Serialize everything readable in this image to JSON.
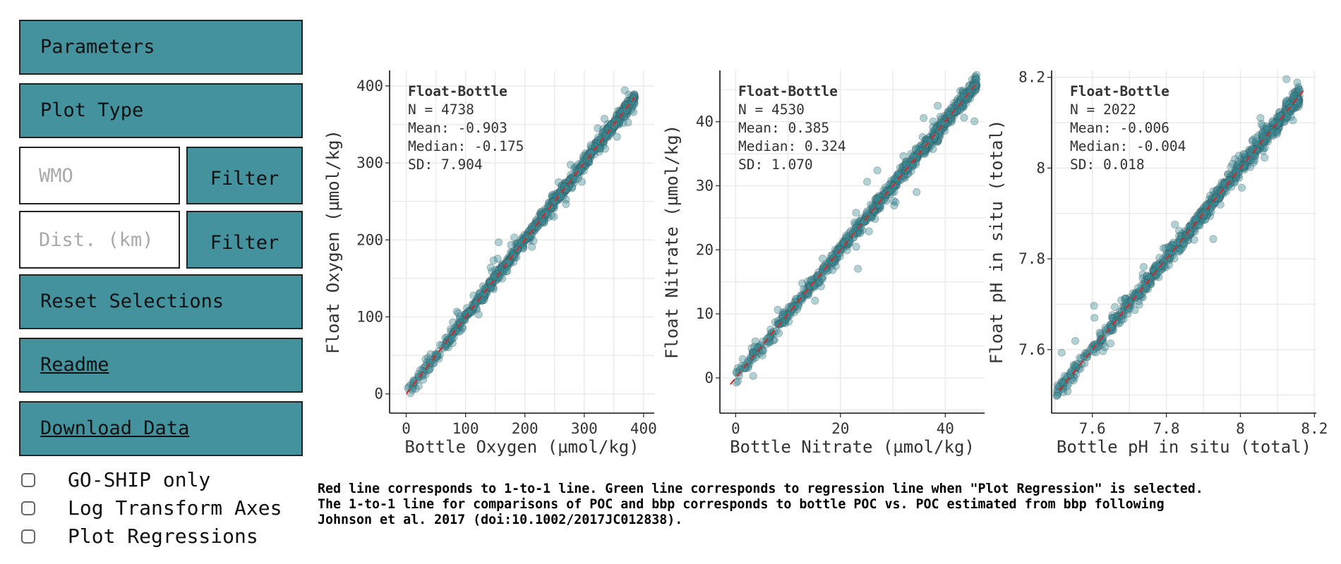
{
  "sidebar": {
    "parameters_label": "Parameters",
    "plot_type_label": "Plot Type",
    "wmo_placeholder": "WMO",
    "wmo_filter_label": "Filter",
    "dist_placeholder": "Dist. (km)",
    "dist_filter_label": "Filter",
    "reset_label": "Reset Selections",
    "readme_label": "Readme",
    "download_label": "Download Data",
    "checkboxes": [
      {
        "label": "GO-SHIP only",
        "checked": false
      },
      {
        "label": "Log Transform Axes",
        "checked": false
      },
      {
        "label": "Plot Regressions",
        "checked": false
      }
    ]
  },
  "caption": {
    "line1": "Red line corresponds to 1-to-1 line. Green line corresponds to regression line when \"Plot Regression\" is selected.",
    "line2": "The 1-to-1 line for comparisons of POC and bbp corresponds to bottle POC vs. POC estimated from bbp following",
    "line3": "Johnson et al. 2017 (doi:10.1002/2017JC012838)."
  },
  "colors": {
    "accent": "#43929e",
    "point_fill": "#3d8c95",
    "point_stroke": "#2a4a50",
    "one_to_one": "#d62728",
    "grid": "#ebebeb"
  },
  "chart_data": [
    {
      "type": "scatter",
      "xlabel": "Bottle Oxygen (µmol/kg)",
      "ylabel": "Float Oxygen (µmol/kg)",
      "xlim": [
        -28,
        418
      ],
      "ylim": [
        -25,
        420
      ],
      "xticks": [
        0,
        100,
        200,
        300,
        400
      ],
      "yticks": [
        0,
        100,
        200,
        300,
        400
      ],
      "xtick_labels": [
        "0",
        "100",
        "200",
        "300",
        "400"
      ],
      "ytick_labels": [
        "0",
        "100",
        "200",
        "300",
        "400"
      ],
      "one_to_one_range": [
        0,
        385
      ],
      "point_range": [
        2,
        385
      ],
      "noise_sd": 7.9,
      "stats": {
        "title": "Float-Bottle",
        "n": "N = 4738",
        "mean": "Mean: -0.903",
        "median": "Median: -0.175",
        "sd": "SD: 7.904"
      }
    },
    {
      "type": "scatter",
      "xlabel": "Bottle Nitrate (µmol/kg)",
      "ylabel": "Float Nitrate (µmol/kg)",
      "xlim": [
        -3,
        47.5
      ],
      "ylim": [
        -5.5,
        48
      ],
      "xticks": [
        0,
        20,
        40
      ],
      "yticks": [
        0,
        10,
        20,
        30,
        40
      ],
      "xtick_labels": [
        "0",
        "20",
        "40"
      ],
      "ytick_labels": [
        "0",
        "10",
        "20",
        "30",
        "40"
      ],
      "one_to_one_range": [
        -1,
        46
      ],
      "point_range": [
        0,
        46
      ],
      "noise_sd": 1.07,
      "stats": {
        "title": "Float-Bottle",
        "n": "N = 4530",
        "mean": "Mean: 0.385",
        "median": "Median: 0.324",
        "sd": "SD: 1.070"
      }
    },
    {
      "type": "scatter",
      "xlabel": "Bottle pH in situ (total)",
      "ylabel": "Float pH in situ (total)",
      "xlim": [
        7.49,
        8.205
      ],
      "ylim": [
        7.46,
        8.215
      ],
      "xticks": [
        7.6,
        7.8,
        8.0,
        8.2
      ],
      "yticks": [
        7.6,
        7.8,
        8.0,
        8.2
      ],
      "xtick_labels": [
        "7.6",
        "7.8",
        "8",
        "8.2"
      ],
      "ytick_labels": [
        "7.6",
        "7.8",
        "8",
        "8.2"
      ],
      "one_to_one_range": [
        7.51,
        8.17
      ],
      "point_range": [
        7.5,
        8.16
      ],
      "noise_sd": 0.018,
      "stats": {
        "title": "Float-Bottle",
        "n": "N = 2022",
        "mean": "Mean: -0.006",
        "median": "Median: -0.004",
        "sd": "SD: 0.018"
      }
    }
  ]
}
